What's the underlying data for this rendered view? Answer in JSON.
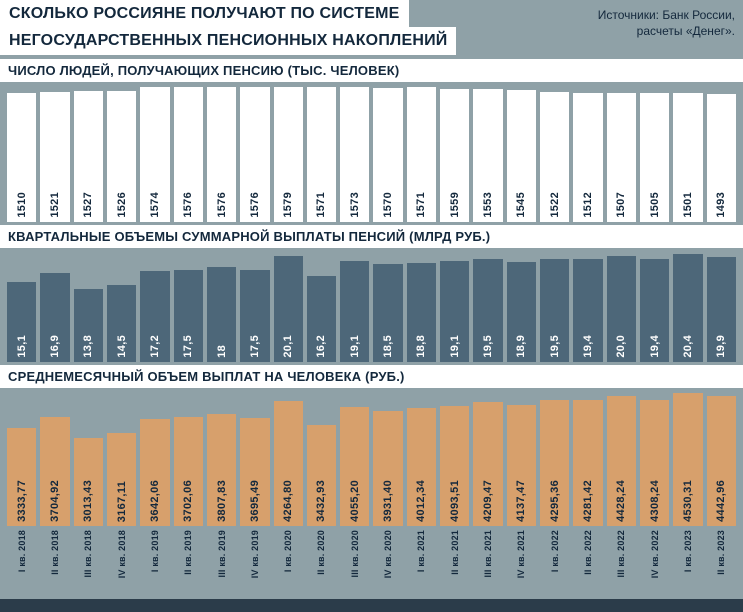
{
  "header": {
    "title_line1": "СКОЛЬКО РОССИЯНЕ ПОЛУЧАЮТ ПО СИСТЕМЕ",
    "title_line2": "НЕГОСУДАРСТВЕННЫХ ПЕНСИОННЫХ НАКОПЛЕНИЙ",
    "source_line1": "Источники: Банк России,",
    "source_line2": "расчеты «Денег»."
  },
  "colors": {
    "background": "#8fa1a7",
    "panel_white": "#ffffff",
    "text_dark": "#13283c",
    "bar_people": "#ffffff",
    "bar_payments": "#4d6779",
    "bar_average": "#d7a06c",
    "footer": "#2b3c4a"
  },
  "chart_data": [
    {
      "type": "bar",
      "title": "ЧИСЛО ЛЮДЕЙ, ПОЛУЧАЮЩИХ ПЕНСИЮ (ТЫС. ЧЕЛОВЕК)",
      "categories": [
        "I кв. 2018",
        "II кв. 2018",
        "III кв. 2018",
        "IV кв. 2018",
        "I кв. 2019",
        "II кв. 2019",
        "III кв. 2019",
        "IV кв. 2019",
        "I кв. 2020",
        "II кв. 2020",
        "III кв. 2020",
        "IV кв. 2020",
        "I кв. 2021",
        "II кв. 2021",
        "III кв. 2021",
        "IV кв. 2021",
        "I кв. 2022",
        "II кв. 2022",
        "III кв. 2022",
        "IV кв. 2022",
        "I кв. 2023",
        "II кв. 2023"
      ],
      "values": [
        1510,
        1521,
        1527,
        1526,
        1574,
        1576,
        1576,
        1576,
        1579,
        1571,
        1573,
        1570,
        1571,
        1559,
        1553,
        1545,
        1522,
        1512,
        1507,
        1505,
        1501,
        1493
      ],
      "value_labels": [
        "1510",
        "1521",
        "1527",
        "1526",
        "1574",
        "1576",
        "1576",
        "1576",
        "1579",
        "1571",
        "1573",
        "1570",
        "1571",
        "1559",
        "1553",
        "1545",
        "1522",
        "1512",
        "1507",
        "1505",
        "1501",
        "1493"
      ],
      "xlabel": "",
      "ylabel": "тыс. человек",
      "ylim": [
        0,
        1600
      ],
      "grid": false,
      "bar_color": "#ffffff",
      "label_color": "#13283c"
    },
    {
      "type": "bar",
      "title": "КВАРТАЛЬНЫЕ ОБЪЕМЫ СУММАРНОЙ ВЫПЛАТЫ ПЕНСИЙ (МЛРД РУБ.)",
      "categories": [
        "I кв. 2018",
        "II кв. 2018",
        "III кв. 2018",
        "IV кв. 2018",
        "I кв. 2019",
        "II кв. 2019",
        "III кв. 2019",
        "IV кв. 2019",
        "I кв. 2020",
        "II кв. 2020",
        "III кв. 2020",
        "IV кв. 2020",
        "I кв. 2021",
        "II кв. 2021",
        "III кв. 2021",
        "IV кв. 2021",
        "I кв. 2022",
        "II кв. 2022",
        "III кв. 2022",
        "IV кв. 2022",
        "I кв. 2023",
        "II кв. 2023"
      ],
      "values": [
        15.1,
        16.9,
        13.8,
        14.5,
        17.2,
        17.5,
        18,
        17.5,
        20.1,
        16.2,
        19.1,
        18.5,
        18.8,
        19.1,
        19.5,
        18.9,
        19.5,
        19.4,
        20.0,
        19.4,
        20.4,
        19.9
      ],
      "value_labels": [
        "15,1",
        "16,9",
        "13,8",
        "14,5",
        "17,2",
        "17,5",
        "18",
        "17,5",
        "20,1",
        "16,2",
        "19,1",
        "18,5",
        "18,8",
        "19,1",
        "19,5",
        "18,9",
        "19,5",
        "19,4",
        "20,0",
        "19,4",
        "20,4",
        "19,9"
      ],
      "xlabel": "",
      "ylabel": "млрд руб.",
      "ylim": [
        0,
        21
      ],
      "grid": false,
      "bar_color": "#4d6779",
      "label_color": "#ffffff"
    },
    {
      "type": "bar",
      "title": "СРЕДНЕМЕСЯЧНЫЙ ОБЪЕМ ВЫПЛАТ НА ЧЕЛОВЕКА (РУБ.)",
      "categories": [
        "I кв. 2018",
        "II кв. 2018",
        "III кв. 2018",
        "IV кв. 2018",
        "I кв. 2019",
        "II кв. 2019",
        "III кв. 2019",
        "IV кв. 2019",
        "I кв. 2020",
        "II кв. 2020",
        "III кв. 2020",
        "IV кв. 2020",
        "I кв. 2021",
        "II кв. 2021",
        "III кв. 2021",
        "IV кв. 2021",
        "I кв. 2022",
        "II кв. 2022",
        "III кв. 2022",
        "IV кв. 2022",
        "I кв. 2023",
        "II кв. 2023"
      ],
      "values": [
        3333.77,
        3704.92,
        3013.43,
        3167.11,
        3642.06,
        3702.06,
        3807.83,
        3695.49,
        4264.8,
        3432.93,
        4055.2,
        3931.4,
        4012.34,
        4093.51,
        4209.47,
        4137.47,
        4295.36,
        4281.42,
        4428.24,
        4308.24,
        4530.31,
        4442.96
      ],
      "value_labels": [
        "3333,77",
        "3704,92",
        "3013,43",
        "3167,11",
        "3642,06",
        "3702,06",
        "3807,83",
        "3695,49",
        "4264,80",
        "3432,93",
        "4055,20",
        "3931,40",
        "4012,34",
        "4093,51",
        "4209,47",
        "4137,47",
        "4295,36",
        "4281,42",
        "4428,24",
        "4308,24",
        "4530,31",
        "4442,96"
      ],
      "xlabel": "",
      "ylabel": "руб.",
      "ylim": [
        0,
        4600
      ],
      "grid": false,
      "bar_color": "#d7a06c",
      "label_color": "#13283c"
    }
  ]
}
